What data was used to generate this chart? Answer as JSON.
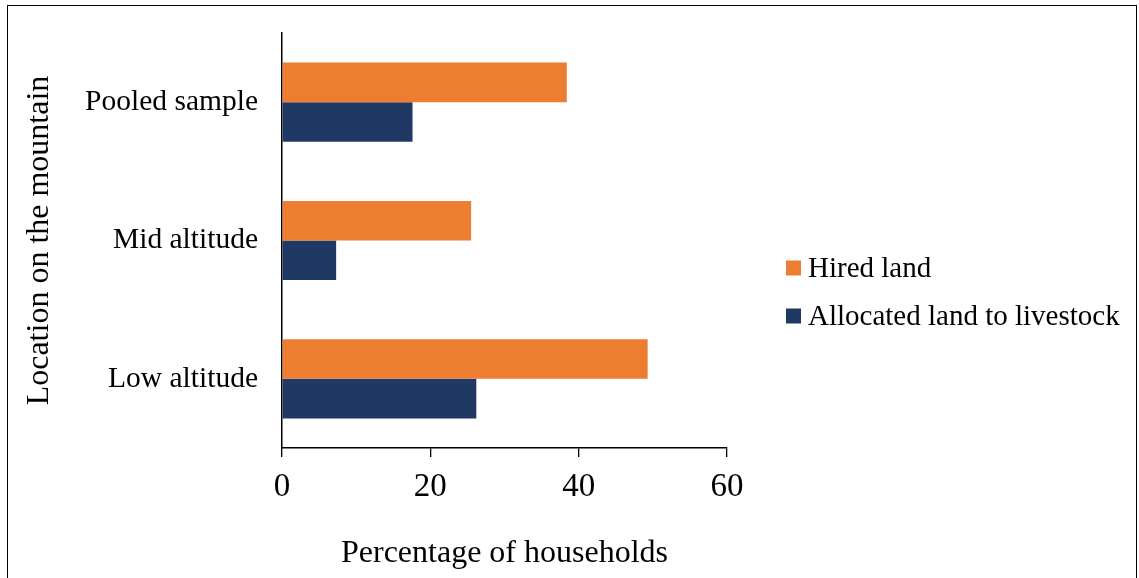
{
  "chart_data": {
    "type": "bar",
    "orientation": "horizontal",
    "xlabel": "Percentage of households",
    "ylabel": "Location on the mountain",
    "categories": [
      "Pooled sample",
      "Mid altitude",
      "Low altitude"
    ],
    "series": [
      {
        "name": "Hired land",
        "color": "#ed7d31",
        "values": [
          38.4,
          25.5,
          49.3
        ]
      },
      {
        "name": "Allocated land to livestock",
        "color": "#203864",
        "values": [
          17.6,
          7.3,
          26.2
        ]
      }
    ],
    "xlim": [
      0,
      60
    ],
    "xticks": [
      0,
      20,
      40,
      60
    ],
    "legend": "right"
  }
}
